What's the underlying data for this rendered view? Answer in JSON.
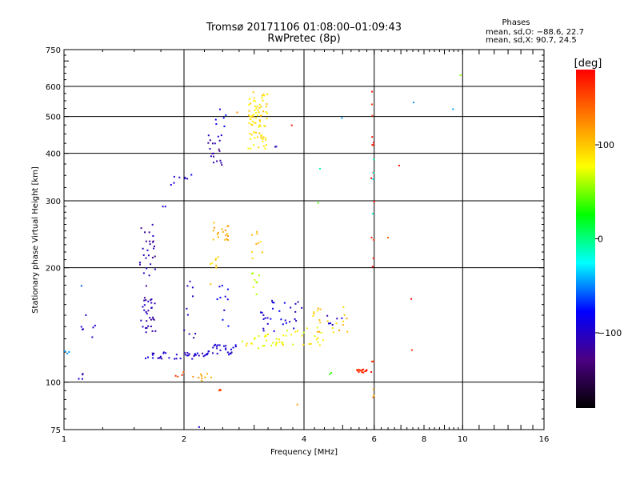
{
  "chart_data": {
    "type": "scatter",
    "title": "Tromsø 20171106 01:08:00–01:09:43",
    "subtitle": "RwPretec (8p)",
    "xlabel": "Frequency [MHz]",
    "ylabel": "Stationary phase Virtual Height [km]",
    "x_scale": "log",
    "y_scale": "log",
    "xlim": [
      1,
      16
    ],
    "ylim": [
      75,
      750
    ],
    "x_ticks": [
      1,
      2,
      4,
      6,
      8,
      10,
      16
    ],
    "x_tick_labels": [
      "1",
      "2",
      "4",
      "6",
      "8",
      "10",
      "16"
    ],
    "x_gridlines": [
      2,
      4,
      6,
      10
    ],
    "y_ticks": [
      75,
      100,
      200,
      300,
      400,
      500,
      600,
      750
    ],
    "y_tick_labels": [
      "75",
      "100",
      "200",
      "300",
      "400",
      "500",
      "600",
      "750"
    ],
    "y_gridlines": [
      100,
      200,
      300,
      400,
      500,
      600
    ],
    "legend": {
      "title": "Phases",
      "lines": [
        "mean, sd,O: −88.6, 22.7",
        "mean, sd,X:  90.7, 24.5"
      ]
    },
    "colorbar": {
      "unit": "[deg]",
      "range": [
        -180,
        180
      ],
      "ticks": [
        -100,
        0,
        100
      ],
      "tick_labels": [
        "−100",
        "0",
        "100"
      ],
      "colors": [
        "#000000",
        "#4b0082",
        "#0000ff",
        "#00ffff",
        "#00ff00",
        "#ffff00",
        "#ff8000",
        "#ff0000"
      ]
    },
    "clusters": [
      {
        "x": [
          1.0,
          1.03
        ],
        "y": [
          118,
          121
        ],
        "phase": -50,
        "n": 3
      },
      {
        "x": [
          1.08,
          1.12
        ],
        "y": [
          101,
          106
        ],
        "phase": -100,
        "n": 4
      },
      {
        "x": [
          1.08,
          1.2
        ],
        "y": [
          126,
          160
        ],
        "phase": -100,
        "n": 7
      },
      {
        "x": [
          1.09,
          1.11
        ],
        "y": [
          178,
          182
        ],
        "phase": -60,
        "n": 1
      },
      {
        "x": [
          1.55,
          1.7
        ],
        "y": [
          185,
          260
        ],
        "phase": -110,
        "n": 26
      },
      {
        "x": [
          1.56,
          1.7
        ],
        "y": [
          135,
          180
        ],
        "phase": -110,
        "n": 32
      },
      {
        "x": [
          1.6,
          2.3
        ],
        "y": [
          115,
          120
        ],
        "phase": -100,
        "n": 40
      },
      {
        "x": [
          1.75,
          1.8
        ],
        "y": [
          288,
          292
        ],
        "phase": -90,
        "n": 2
      },
      {
        "x": [
          1.85,
          1.95
        ],
        "y": [
          330,
          350
        ],
        "phase": -100,
        "n": 4
      },
      {
        "x": [
          2.0,
          2.15
        ],
        "y": [
          340,
          360
        ],
        "phase": -90,
        "n": 4
      },
      {
        "x": [
          2.0,
          2.15
        ],
        "y": [
          130,
          190
        ],
        "phase": -100,
        "n": 10
      },
      {
        "x": [
          1.9,
          2.0
        ],
        "y": [
          103,
          107
        ],
        "phase": 150,
        "n": 4
      },
      {
        "x": [
          2.1,
          2.35
        ],
        "y": [
          100,
          106
        ],
        "phase": 110,
        "n": 9
      },
      {
        "x": [
          2.3,
          2.5
        ],
        "y": [
          360,
          450
        ],
        "phase": -110,
        "n": 20
      },
      {
        "x": [
          2.4,
          2.55
        ],
        "y": [
          470,
          530
        ],
        "phase": -80,
        "n": 6
      },
      {
        "x": [
          2.3,
          2.7
        ],
        "y": [
          118,
          126
        ],
        "phase": -95,
        "n": 25
      },
      {
        "x": [
          2.4,
          2.6
        ],
        "y": [
          140,
          180
        ],
        "phase": -90,
        "n": 10
      },
      {
        "x": [
          2.35,
          2.6
        ],
        "y": [
          235,
          265
        ],
        "phase": 110,
        "n": 18
      },
      {
        "x": [
          2.3,
          2.45
        ],
        "y": [
          180,
          220
        ],
        "phase": 90,
        "n": 8
      },
      {
        "x": [
          2.45,
          2.5
        ],
        "y": [
          95,
          100
        ],
        "phase": 150,
        "n": 3
      },
      {
        "x": [
          2.9,
          3.25
        ],
        "y": [
          410,
          580
        ],
        "phase": 90,
        "n": 80
      },
      {
        "x": [
          2.95,
          3.15
        ],
        "y": [
          210,
          265
        ],
        "phase": 100,
        "n": 9
      },
      {
        "x": [
          2.95,
          3.1
        ],
        "y": [
          170,
          195
        ],
        "phase": 60,
        "n": 8
      },
      {
        "x": [
          2.8,
          3.6
        ],
        "y": [
          122,
          134
        ],
        "phase": 80,
        "n": 30
      },
      {
        "x": [
          3.1,
          4.0
        ],
        "y": [
          135,
          165
        ],
        "phase": -95,
        "n": 30
      },
      {
        "x": [
          3.6,
          4.5
        ],
        "y": [
          125,
          140
        ],
        "phase": 80,
        "n": 20
      },
      {
        "x": [
          4.2,
          5.2
        ],
        "y": [
          135,
          158
        ],
        "phase": 100,
        "n": 22
      },
      {
        "x": [
          4.4,
          5.0
        ],
        "y": [
          140,
          150
        ],
        "phase": -100,
        "n": 6
      },
      {
        "x": [
          5.4,
          5.9
        ],
        "y": [
          106,
          108
        ],
        "phase": 165,
        "n": 18
      },
      {
        "x": [
          4.6,
          4.7
        ],
        "y": [
          104,
          106
        ],
        "phase": 30,
        "n": 2
      },
      {
        "x": [
          5.9,
          6.0
        ],
        "y": [
          110,
          640
        ],
        "phase": 170,
        "n": 16
      },
      {
        "x": [
          5.95,
          6.0
        ],
        "y": [
          80,
          96
        ],
        "phase": 120,
        "n": 3
      },
      {
        "x": [
          5.9,
          6.0
        ],
        "y": [
          270,
          400
        ],
        "phase": -20,
        "n": 4
      },
      {
        "x": [
          3.7,
          3.75
        ],
        "y": [
          470,
          480
        ],
        "phase": 170,
        "n": 1
      },
      {
        "x": [
          3.3,
          3.5
        ],
        "y": [
          410,
          420
        ],
        "phase": -100,
        "n": 2
      },
      {
        "x": [
          4.3,
          4.4
        ],
        "y": [
          295,
          300
        ],
        "phase": 30,
        "n": 1
      },
      {
        "x": [
          4.35,
          4.45
        ],
        "y": [
          360,
          365
        ],
        "phase": -20,
        "n": 1
      },
      {
        "x": [
          4.9,
          5.0
        ],
        "y": [
          490,
          498
        ],
        "phase": -40,
        "n": 1
      },
      {
        "x": [
          6.5,
          6.6
        ],
        "y": [
          240,
          244
        ],
        "phase": 150,
        "n": 1
      },
      {
        "x": [
          6.9,
          7.0
        ],
        "y": [
          370,
          375
        ],
        "phase": 170,
        "n": 1
      },
      {
        "x": [
          7.4,
          7.5
        ],
        "y": [
          165,
          169
        ],
        "phase": 170,
        "n": 1
      },
      {
        "x": [
          7.4,
          7.5
        ],
        "y": [
          120,
          123
        ],
        "phase": 170,
        "n": 1
      },
      {
        "x": [
          7.5,
          7.6
        ],
        "y": [
          540,
          545
        ],
        "phase": -40,
        "n": 1
      },
      {
        "x": [
          9.4,
          9.5
        ],
        "y": [
          520,
          525
        ],
        "phase": -40,
        "n": 1
      },
      {
        "x": [
          9.8,
          9.9
        ],
        "y": [
          640,
          645
        ],
        "phase": 40,
        "n": 1
      },
      {
        "x": [
          3.85,
          3.9
        ],
        "y": [
          85,
          88
        ],
        "phase": 120,
        "n": 1
      },
      {
        "x": [
          2.15,
          2.2
        ],
        "y": [
          76,
          78
        ],
        "phase": -100,
        "n": 1
      },
      {
        "x": [
          2.7,
          2.75
        ],
        "y": [
          510,
          520
        ],
        "phase": 130,
        "n": 1
      }
    ]
  }
}
